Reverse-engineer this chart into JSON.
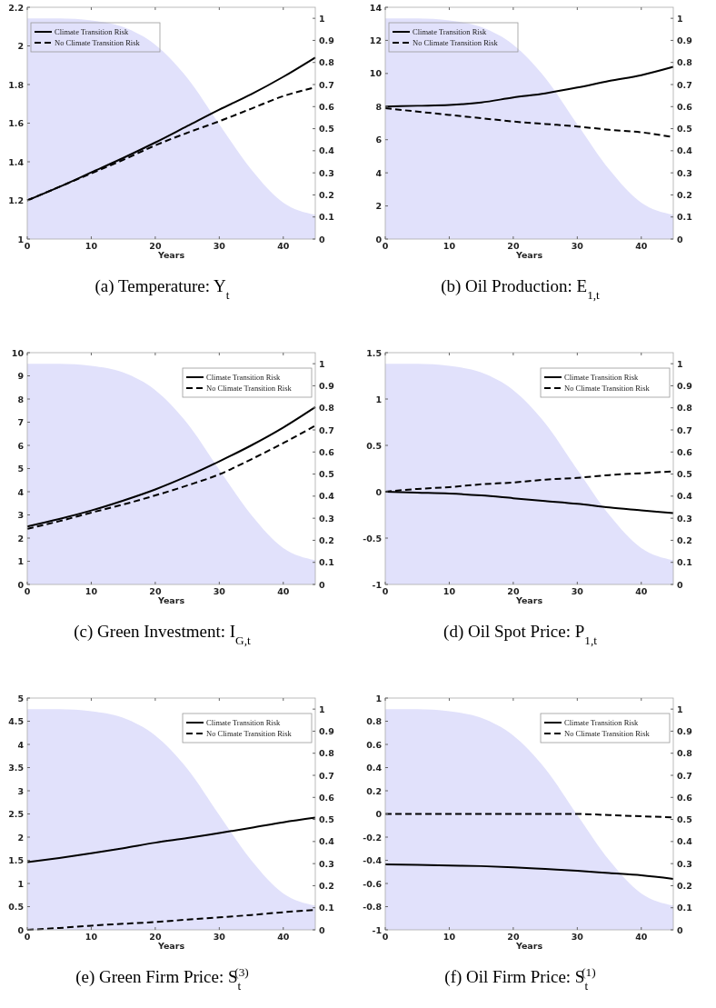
{
  "chart_data": [
    {
      "type": "line",
      "title": "(a) Temperature: Y$_{t}$",
      "xlabel": "Years",
      "xlim": [
        0,
        45
      ],
      "xticks": [
        0,
        10,
        20,
        30,
        40
      ],
      "ylim": [
        1,
        2.2
      ],
      "yticks": [
        1,
        1.2,
        1.4,
        1.6,
        1.8,
        2,
        2.2
      ],
      "y2lim": [
        0,
        1.05
      ],
      "y2ticks": [
        0,
        0.1,
        0.2,
        0.3,
        0.4,
        0.5,
        0.6,
        0.7,
        0.8,
        0.9,
        1
      ],
      "legend": "top left",
      "marker": "none",
      "grid": false,
      "x": [
        0,
        5,
        10,
        15,
        20,
        25,
        30,
        35,
        40,
        45
      ],
      "series": [
        {
          "type": "area",
          "axis": "y2",
          "color": "#e1e1fb",
          "values": [
            1,
            1,
            0.99,
            0.96,
            0.88,
            0.73,
            0.52,
            0.315,
            0.165,
            0.11
          ]
        },
        {
          "name": "Climate Transition Risk",
          "color": "#000000",
          "line_style": "solid",
          "values": [
            1.2,
            1.27,
            1.345,
            1.42,
            1.5,
            1.585,
            1.67,
            1.75,
            1.84,
            1.94
          ]
        },
        {
          "name": "No Climate Transition Risk",
          "color": "#000000",
          "line_style": "dashed",
          "values": [
            1.2,
            1.27,
            1.34,
            1.41,
            1.485,
            1.55,
            1.61,
            1.675,
            1.74,
            1.785
          ]
        }
      ]
    },
    {
      "type": "line",
      "title": "(b) Oil Production: E$_{1,t}$",
      "xlabel": "Years",
      "xlim": [
        0,
        45
      ],
      "xticks": [
        0,
        10,
        20,
        30,
        40
      ],
      "ylim": [
        0,
        14
      ],
      "yticks": [
        0,
        2,
        4,
        6,
        8,
        10,
        12,
        14
      ],
      "y2lim": [
        0,
        1.05
      ],
      "y2ticks": [
        0,
        0.1,
        0.2,
        0.3,
        0.4,
        0.5,
        0.6,
        0.7,
        0.8,
        0.9,
        1
      ],
      "legend": "top left",
      "marker": "none",
      "grid": false,
      "x": [
        0,
        5,
        10,
        15,
        20,
        25,
        30,
        35,
        40,
        45
      ],
      "series": [
        {
          "type": "area",
          "axis": "y2",
          "color": "#e1e1fb",
          "values": [
            1,
            1,
            0.99,
            0.96,
            0.88,
            0.73,
            0.52,
            0.315,
            0.165,
            0.11
          ]
        },
        {
          "name": "Climate Transition Risk",
          "color": "#000000",
          "line_style": "solid",
          "values": [
            8,
            8.05,
            8.1,
            8.25,
            8.55,
            8.8,
            9.15,
            9.55,
            9.9,
            10.4
          ]
        },
        {
          "name": "No Climate Transition Risk",
          "color": "#000000",
          "line_style": "dashed",
          "values": [
            7.9,
            7.7,
            7.5,
            7.3,
            7.1,
            6.95,
            6.8,
            6.6,
            6.45,
            6.15
          ]
        }
      ]
    },
    {
      "type": "line",
      "title": "(c) Green Investment: I$_{G,t}$",
      "xlabel": "Years",
      "xlim": [
        0,
        45
      ],
      "xticks": [
        0,
        10,
        20,
        30,
        40
      ],
      "ylim": [
        0,
        10
      ],
      "yticks": [
        0,
        1,
        2,
        3,
        4,
        5,
        6,
        7,
        8,
        9,
        10
      ],
      "y2lim": [
        0,
        1.05
      ],
      "y2ticks": [
        0,
        0.1,
        0.2,
        0.3,
        0.4,
        0.5,
        0.6,
        0.7,
        0.8,
        0.9,
        1
      ],
      "legend": "top right",
      "marker": "none",
      "grid": false,
      "x": [
        0,
        5,
        10,
        15,
        20,
        25,
        30,
        35,
        40,
        45
      ],
      "series": [
        {
          "type": "area",
          "axis": "y2",
          "color": "#e1e1fb",
          "values": [
            1,
            1,
            0.99,
            0.96,
            0.88,
            0.73,
            0.52,
            0.315,
            0.165,
            0.11
          ]
        },
        {
          "name": "Climate Transition Risk",
          "color": "#000000",
          "line_style": "solid",
          "values": [
            2.5,
            2.82,
            3.19,
            3.62,
            4.1,
            4.67,
            5.31,
            6.0,
            6.77,
            7.65
          ]
        },
        {
          "name": "No Climate Transition Risk",
          "color": "#000000",
          "line_style": "dashed",
          "values": [
            2.4,
            2.73,
            3.1,
            3.45,
            3.84,
            4.27,
            4.75,
            5.4,
            6.1,
            6.85
          ]
        }
      ]
    },
    {
      "type": "line",
      "title": "(d) Oil Spot Price: P$_{1,t}$",
      "xlabel": "Years",
      "xlim": [
        0,
        45
      ],
      "xticks": [
        0,
        10,
        20,
        30,
        40
      ],
      "ylim": [
        -1,
        1.5
      ],
      "yticks": [
        -1,
        -0.5,
        0,
        0.5,
        1,
        1.5
      ],
      "y2lim": [
        0,
        1.05
      ],
      "y2ticks": [
        0,
        0.1,
        0.2,
        0.3,
        0.4,
        0.5,
        0.6,
        0.7,
        0.8,
        0.9,
        1
      ],
      "legend": "top right",
      "marker": "none",
      "grid": false,
      "x": [
        0,
        5,
        10,
        15,
        20,
        25,
        30,
        35,
        40,
        45
      ],
      "series": [
        {
          "type": "area",
          "axis": "y2",
          "color": "#e1e1fb",
          "values": [
            1,
            1,
            0.99,
            0.96,
            0.88,
            0.73,
            0.52,
            0.315,
            0.165,
            0.11
          ]
        },
        {
          "name": "Climate Transition Risk",
          "color": "#000000",
          "line_style": "solid",
          "values": [
            0,
            -0.01,
            -0.02,
            -0.04,
            -0.07,
            -0.1,
            -0.13,
            -0.17,
            -0.2,
            -0.23
          ]
        },
        {
          "name": "No Climate Transition Risk",
          "color": "#000000",
          "line_style": "dashed",
          "values": [
            0,
            0.03,
            0.05,
            0.08,
            0.1,
            0.13,
            0.15,
            0.18,
            0.2,
            0.22
          ]
        }
      ]
    },
    {
      "type": "line",
      "title": "(e) Green Firm Price: S$_{t}$$^{(3)}$",
      "xlabel": "Years",
      "xlim": [
        0,
        45
      ],
      "xticks": [
        0,
        10,
        20,
        30,
        40
      ],
      "ylim": [
        0,
        5
      ],
      "yticks": [
        0,
        0.5,
        1,
        1.5,
        2,
        2.5,
        3,
        3.5,
        4,
        4.5,
        5
      ],
      "y2lim": [
        0,
        1.05
      ],
      "y2ticks": [
        0,
        0.1,
        0.2,
        0.3,
        0.4,
        0.5,
        0.6,
        0.7,
        0.8,
        0.9,
        1
      ],
      "legend": "top right",
      "marker": "none",
      "grid": false,
      "x": [
        0,
        5,
        10,
        15,
        20,
        25,
        30,
        35,
        40,
        45
      ],
      "series": [
        {
          "type": "area",
          "axis": "y2",
          "color": "#e1e1fb",
          "values": [
            1,
            1,
            0.99,
            0.96,
            0.88,
            0.73,
            0.52,
            0.315,
            0.165,
            0.11
          ]
        },
        {
          "name": "Climate Transition Risk",
          "color": "#000000",
          "line_style": "solid",
          "values": [
            1.46,
            1.55,
            1.65,
            1.76,
            1.88,
            1.98,
            2.09,
            2.2,
            2.32,
            2.42
          ]
        },
        {
          "name": "No Climate Transition Risk",
          "color": "#000000",
          "line_style": "dashed",
          "values": [
            0,
            0.04,
            0.09,
            0.13,
            0.17,
            0.22,
            0.27,
            0.32,
            0.38,
            0.43
          ]
        }
      ]
    },
    {
      "type": "line",
      "title": "(f) Oil Firm Price: S$_{t}$$^{(1)}$",
      "xlabel": "Years",
      "xlim": [
        0,
        45
      ],
      "xticks": [
        0,
        10,
        20,
        30,
        40
      ],
      "ylim": [
        -1,
        1
      ],
      "yticks": [
        -1,
        -0.8,
        -0.6,
        -0.4,
        -0.2,
        0,
        0.2,
        0.4,
        0.6,
        0.8,
        1
      ],
      "y2lim": [
        0,
        1.05
      ],
      "y2ticks": [
        0,
        0.1,
        0.2,
        0.3,
        0.4,
        0.5,
        0.6,
        0.7,
        0.8,
        0.9,
        1
      ],
      "legend": "top right",
      "marker": "none",
      "grid": false,
      "x": [
        0,
        5,
        10,
        15,
        20,
        25,
        30,
        35,
        40,
        45
      ],
      "series": [
        {
          "type": "area",
          "axis": "y2",
          "color": "#e1e1fb",
          "values": [
            1,
            1,
            0.99,
            0.96,
            0.88,
            0.73,
            0.52,
            0.315,
            0.165,
            0.11
          ]
        },
        {
          "name": "Climate Transition Risk",
          "color": "#000000",
          "line_style": "solid",
          "values": [
            -0.435,
            -0.44,
            -0.445,
            -0.45,
            -0.46,
            -0.475,
            -0.49,
            -0.51,
            -0.53,
            -0.56
          ]
        },
        {
          "name": "No Climate Transition Risk",
          "color": "#000000",
          "line_style": "dashed",
          "values": [
            0,
            0,
            0,
            0,
            0,
            0,
            0,
            -0.01,
            -0.02,
            -0.03
          ]
        }
      ]
    }
  ]
}
